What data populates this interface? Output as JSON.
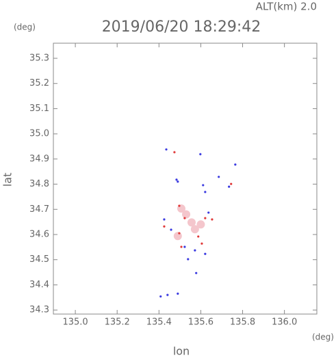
{
  "chart_data": {
    "type": "scatter",
    "title": "2019/06/20 18:29:42",
    "subtitle": "ALT(km) 2.0",
    "y_unit": "(deg)",
    "x_unit": "(deg)",
    "x_label": "lon",
    "y_label": "lat",
    "xlim": [
      134.895,
      136.155
    ],
    "ylim": [
      34.284,
      35.36
    ],
    "xticks": [
      {
        "value": 135,
        "label": "135.0"
      },
      135.2,
      135.4,
      135.6,
      135.8,
      {
        "value": 136,
        "label": "136.0"
      }
    ],
    "yticks": [
      34.3,
      34.4,
      34.5,
      34.6,
      34.7,
      34.8,
      34.9,
      {
        "value": 35,
        "label": "35.0"
      },
      35.1,
      35.2,
      35.3
    ],
    "series": [
      {
        "color": "#f4c6cc",
        "x": [
          135.556,
          135.49,
          135.572,
          135.507,
          135.53,
          135.6
        ],
        "y": [
          34.648,
          34.594,
          34.621,
          34.703,
          34.68,
          34.64
        ]
      },
      {
        "color": "#3a3ae0",
        "x": [
          135.435,
          135.484,
          135.49,
          135.598,
          135.611,
          135.686,
          135.765,
          135.735,
          135.621,
          135.425,
          135.458,
          135.523,
          135.539,
          135.572,
          135.621,
          135.637,
          135.578,
          135.408,
          135.441,
          135.49
        ],
        "y": [
          34.938,
          34.818,
          34.81,
          34.919,
          34.796,
          34.829,
          34.878,
          34.79,
          34.769,
          34.66,
          34.619,
          34.551,
          34.502,
          34.537,
          34.523,
          34.687,
          34.447,
          34.354,
          34.36,
          34.365
        ]
      },
      {
        "color": "#e03a3a",
        "x": [
          135.474,
          135.497,
          135.523,
          135.621,
          135.654,
          135.497,
          135.588,
          135.605,
          135.745,
          135.507,
          135.425
        ],
        "y": [
          34.927,
          34.714,
          34.665,
          34.665,
          34.66,
          34.605,
          34.592,
          34.564,
          34.801,
          34.551,
          34.632
        ]
      }
    ]
  }
}
